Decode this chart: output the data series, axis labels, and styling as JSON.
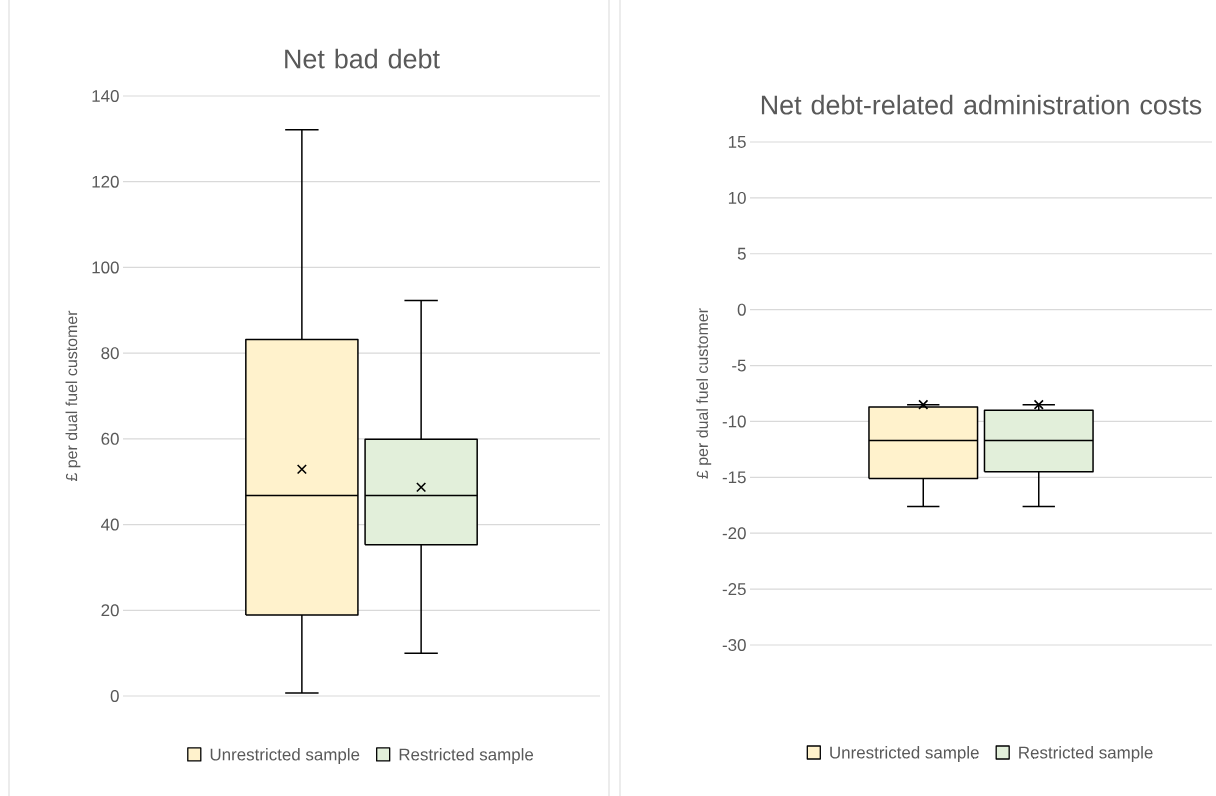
{
  "chart_data": [
    {
      "type": "box",
      "title": "Net bad debt",
      "ylabel": "£ per dual fuel customer",
      "categories": [
        null
      ],
      "ylim": [
        0,
        140
      ],
      "yticks": [
        0,
        20,
        40,
        60,
        80,
        100,
        120,
        140
      ],
      "grid": "y",
      "legend": "bottom",
      "marker": "cross",
      "series": [
        {
          "name": "Unrestricted sample",
          "color": "#fff2cc",
          "boxes": [
            {
              "low": 0.7,
              "q1": 18.9,
              "median": 46.8,
              "q3": 83.2,
              "high": 132.1,
              "mean": 52.9
            }
          ]
        },
        {
          "name": "Restricted sample",
          "color": "#e2efda",
          "boxes": [
            {
              "low": 10.0,
              "q1": 35.3,
              "median": 46.8,
              "q3": 59.9,
              "high": 92.3,
              "mean": 48.7
            }
          ]
        }
      ]
    },
    {
      "type": "box",
      "title": "Net debt-related administration costs",
      "ylabel": "£ per dual fuel customer",
      "categories": [
        null
      ],
      "ylim": [
        -30,
        15
      ],
      "yticks": [
        -30,
        -25,
        -20,
        -15,
        -10,
        -5,
        0,
        5,
        10,
        15
      ],
      "grid": "y",
      "legend": "bottom",
      "marker": "cross",
      "series": [
        {
          "name": "Unrestricted sample",
          "color": "#fff2cc",
          "boxes": [
            {
              "low": -17.6,
              "q1": -15.1,
              "median": -11.7,
              "q3": -8.7,
              "high": -8.5,
              "mean": -8.5
            }
          ]
        },
        {
          "name": "Restricted sample",
          "color": "#e2efda",
          "boxes": [
            {
              "low": -17.6,
              "q1": -14.5,
              "median": -11.7,
              "q3": -9.0,
              "high": -8.5,
              "mean": -8.5
            }
          ]
        }
      ]
    }
  ]
}
